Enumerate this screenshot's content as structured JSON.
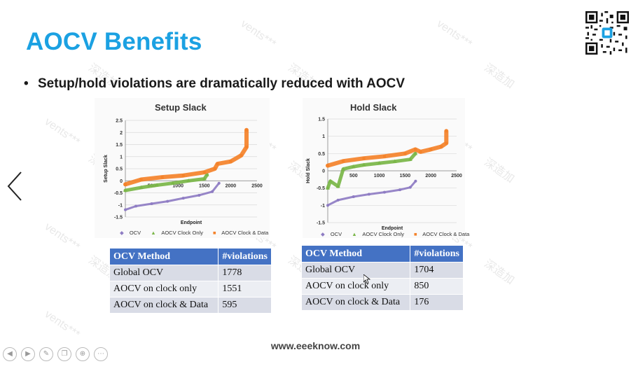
{
  "slide": {
    "title": "AOCV Benefits",
    "bullet": "Setup/hold violations are dramatically reduced with AOCV",
    "footer": "www.eeeknow.com",
    "watermark_a": "vents***",
    "watermark_b": "深造加"
  },
  "colors": {
    "title": "#1ba1e2",
    "table_header": "#4472c4",
    "ocv": "#8e7cc3",
    "aocv_clock_only": "#7ab648",
    "aocv_clock_data": "#f4822a"
  },
  "tables": [
    {
      "headers": [
        "OCV Method",
        "#violations"
      ],
      "rows": [
        [
          "Global OCV",
          "1778"
        ],
        [
          "AOCV on clock only",
          "1551"
        ],
        [
          "AOCV on clock & Data",
          "595"
        ]
      ]
    },
    {
      "headers": [
        "OCV Method",
        "#violations"
      ],
      "rows": [
        [
          "Global OCV",
          "1704"
        ],
        [
          "AOCV on clock only",
          "850"
        ],
        [
          "AOCV on clock & Data",
          "176"
        ]
      ]
    }
  ],
  "toolbar": {
    "icons": [
      "prev-icon",
      "next-icon",
      "pen-icon",
      "copy-icon",
      "zoom-icon",
      "more-icon"
    ]
  },
  "chart_data": [
    {
      "type": "scatter",
      "title": "Setup Slack",
      "xlabel": "Endpoint",
      "ylabel": "Setup Slack",
      "xlim": [
        0,
        2500
      ],
      "ylim": [
        -1.5,
        2.5
      ],
      "xticks": [
        "500",
        "1000",
        "1500",
        "2000",
        "2500"
      ],
      "yticks": [
        "2.5",
        "2",
        "1.5",
        "1",
        "0.5",
        "0",
        "-0.5",
        "-1",
        "-1.5"
      ],
      "grid": true,
      "legend": "bottom",
      "series": [
        {
          "name": "OCV",
          "x": [
            0,
            200,
            500,
            800,
            1100,
            1400,
            1650,
            1778
          ],
          "y": [
            -1.2,
            -1.05,
            -0.95,
            -0.85,
            -0.72,
            -0.6,
            -0.45,
            -0.1
          ]
        },
        {
          "name": "AOCV Clock Only",
          "x": [
            0,
            300,
            600,
            900,
            1200,
            1500,
            1551
          ],
          "y": [
            -0.4,
            -0.28,
            -0.18,
            -0.1,
            0.0,
            0.08,
            0.25
          ]
        },
        {
          "name": "AOCV Clock & Data",
          "x": [
            0,
            300,
            700,
            1100,
            1500,
            1700,
            1750,
            2000,
            2200,
            2300,
            2300
          ],
          "y": [
            -0.15,
            0.05,
            0.15,
            0.22,
            0.35,
            0.5,
            0.7,
            0.8,
            1.05,
            1.4,
            2.1
          ]
        }
      ]
    },
    {
      "type": "scatter",
      "title": "Hold Slack",
      "xlabel": "Endpoint",
      "ylabel": "Hold Slack",
      "xlim": [
        0,
        2500
      ],
      "ylim": [
        -1.5,
        1.5
      ],
      "xticks": [
        "500",
        "1000",
        "1500",
        "2000",
        "2500"
      ],
      "yticks": [
        "1.5",
        "1",
        "0.5",
        "0",
        "-0.5",
        "-1",
        "-1.5"
      ],
      "grid": true,
      "legend": "bottom",
      "series": [
        {
          "name": "OCV",
          "x": [
            0,
            200,
            500,
            800,
            1100,
            1400,
            1600,
            1704
          ],
          "y": [
            -1.0,
            -0.85,
            -0.75,
            -0.68,
            -0.62,
            -0.55,
            -0.48,
            -0.3
          ]
        },
        {
          "name": "AOCV Clock Only",
          "x": [
            0,
            50,
            200,
            300,
            500,
            700,
            1000,
            1300,
            1600,
            1700
          ],
          "y": [
            -0.5,
            -0.3,
            -0.45,
            0.05,
            0.12,
            0.17,
            0.22,
            0.27,
            0.33,
            0.5
          ]
        },
        {
          "name": "AOCV Clock & Data",
          "x": [
            0,
            300,
            700,
            1100,
            1500,
            1700,
            1800,
            2000,
            2200,
            2300,
            2300
          ],
          "y": [
            0.15,
            0.28,
            0.36,
            0.42,
            0.5,
            0.62,
            0.55,
            0.62,
            0.7,
            0.8,
            1.15
          ]
        }
      ]
    }
  ]
}
